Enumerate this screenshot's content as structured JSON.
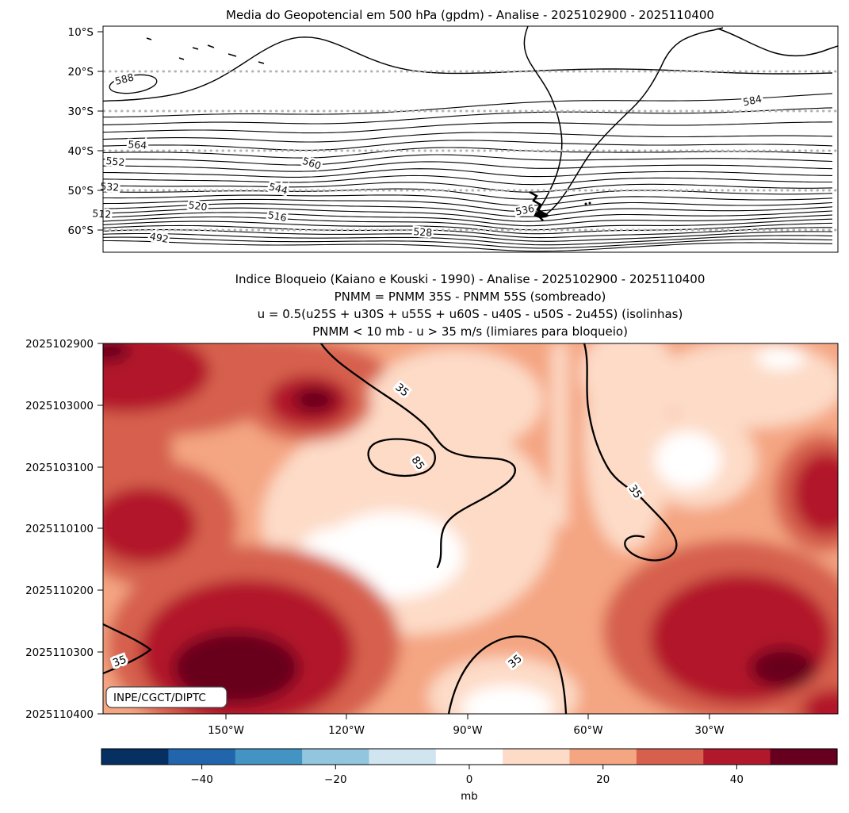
{
  "figure": {
    "top": {
      "title": "Media do Geopotencial em 500 hPa (gpdm) - Analise - 2025102900 - 2025110400",
      "yticks": [
        "10°S",
        "20°S",
        "30°S",
        "40°S",
        "50°S",
        "60°S"
      ],
      "contour_labels": [
        "588",
        "584",
        "564",
        "552",
        "560",
        "544",
        "532",
        "520",
        "516",
        "512",
        "536",
        "528",
        "492"
      ]
    },
    "bottom": {
      "title_lines": [
        "Indice Bloqueio (Kaiano e Kouski - 1990) - Analise - 2025102900 - 2025110400",
        "PNMM = PNMM 35S - PNMM 55S (sombreado)",
        "u = 0.5(u25S + u30S + u55S + u60S - u40S - u50S - 2u45S) (isolinhas)",
        "PNMM < 10 mb - u > 35 m/s (limiares para bloqueio)"
      ],
      "yticks": [
        "2025102900",
        "2025103000",
        "2025103100",
        "2025110100",
        "2025110200",
        "2025110300",
        "2025110400"
      ],
      "xticks": [
        "150°W",
        "120°W",
        "90°W",
        "60°W",
        "30°W"
      ],
      "isoline_labels": [
        "35",
        "85",
        "35",
        "35",
        "35"
      ],
      "credit": "INPE/CGCT/DIPTC"
    },
    "colorbar": {
      "ticks": [
        "−40",
        "−20",
        "0",
        "20",
        "40"
      ],
      "label": "mb",
      "colors": [
        "#053061",
        "#2166ac",
        "#4393c3",
        "#92c5de",
        "#d1e5f0",
        "#ffffff",
        "#fddbc7",
        "#f4a582",
        "#d6604d",
        "#b2182b",
        "#67001f"
      ]
    }
  },
  "chart_data": [
    {
      "type": "contour",
      "title": "Media do Geopotencial em 500 hPa (gpdm) - Analise - 2025102900 - 2025110400",
      "variable": "mean 500 hPa geopotential height",
      "units": "gpdm",
      "y_axis": {
        "label": "latitude",
        "ticks": [
          "10°S",
          "20°S",
          "30°S",
          "40°S",
          "50°S",
          "60°S"
        ],
        "range": [
          "10°S",
          "65°S"
        ]
      },
      "grid": "dotted horizontal lines at labeled latitudes",
      "contour_interval": 4,
      "contour_min": 492,
      "contour_max": 588,
      "labeled_contours": [
        588,
        584,
        564,
        560,
        552,
        544,
        536,
        532,
        528,
        520,
        516,
        512,
        492
      ],
      "features": [
        "588 gpdm ridge peaking near 12-15S in the central Pacific",
        "small closed 588 gpdm center near 20S at far west",
        "strong meridional gradient (tightly packed contours) from 30S to 65S",
        "trough over/near southern South America where the 536 contour dips",
        "South America coastline overlaid in black"
      ]
    },
    {
      "type": "heatmap",
      "title": "Indice Bloqueio (Kaiano e Kouski - 1990) - Analise - 2025102900 - 2025110400",
      "subtitle": [
        "PNMM = PNMM 35S - PNMM 55S (sombreado)",
        "u = 0.5(u25S + u30S + u55S + u60S - u40S - u50S - 2u45S) (isolinhas)",
        "PNMM < 10 mb - u > 35 m/s (limiares para bloqueio)"
      ],
      "x_axis": {
        "label": "longitude",
        "ticks": [
          "150°W",
          "120°W",
          "90°W",
          "60°W",
          "30°W"
        ]
      },
      "y_axis": {
        "label": "date (yyyymmddhh), time increasing downward",
        "ticks": [
          "2025102900",
          "2025103000",
          "2025103100",
          "2025110100",
          "2025110200",
          "2025110300",
          "2025110400"
        ]
      },
      "shading": {
        "variable": "PNMM 35S - PNMM 55S",
        "units": "mb",
        "range": [
          -55,
          55
        ],
        "level_step": 10,
        "colorbar_ticks": [
          -40,
          -20,
          0,
          20,
          40
        ],
        "palette": "RdBu reversed, white near zero"
      },
      "isolines": {
        "variable": "u",
        "units": "m/s",
        "labeled_levels": [
          35,
          85
        ]
      },
      "annotations": [
        "INPE/CGCT/DIPTC"
      ],
      "approx_field_mb": [
        {
          "region": "far west (180-150W), first days",
          "value": 40
        },
        {
          "region": "west (175-140W), last three days",
          "value": 50
        },
        {
          "region": "small maximum near 125W on 2025103000",
          "value": 50
        },
        {
          "region": "central Pacific 100-85W mid/late period",
          "value": 0
        },
        {
          "region": "column near 60W whole period",
          "value": 10
        },
        {
          "region": "white spot near 40W on 2025103100",
          "value": 0
        },
        {
          "region": "35-15W, 2025110200-2025110400",
          "value": 40
        },
        {
          "region": "south-central arch near 90-75W at end",
          "value": 5
        }
      ]
    }
  ]
}
